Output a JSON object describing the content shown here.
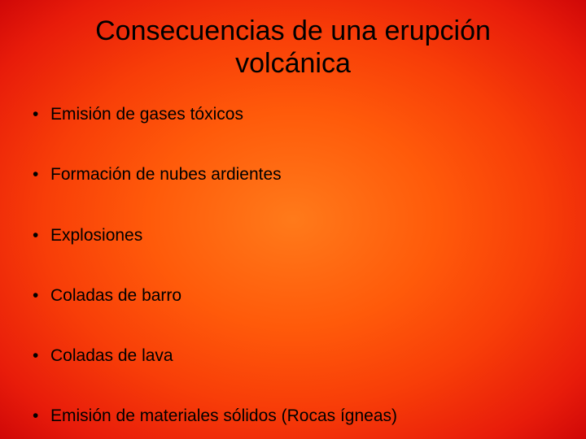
{
  "slide": {
    "title": "Consecuencias de una erupción volcánica",
    "bullets": [
      "Emisión de gases tóxicos",
      "Formación de nubes ardientes",
      "Explosiones",
      "Coladas de barro",
      "Coladas de lava",
      "Emisión de materiales sólidos (Rocas ígneas)"
    ],
    "style": {
      "background_gradient": {
        "type": "radial",
        "stops": [
          {
            "color": "#ff7a1a",
            "at": 0
          },
          {
            "color": "#ff5a0a",
            "at": 35
          },
          {
            "color": "#f83e08",
            "at": 60
          },
          {
            "color": "#e81c0a",
            "at": 85
          },
          {
            "color": "#d00808",
            "at": 100
          }
        ]
      },
      "text_color": "#000000",
      "title_fontsize": 34,
      "title_weight": 400,
      "bullet_fontsize": 21,
      "bullet_weight": 400,
      "bullet_spacing": 49,
      "font_family": "Arial"
    }
  }
}
